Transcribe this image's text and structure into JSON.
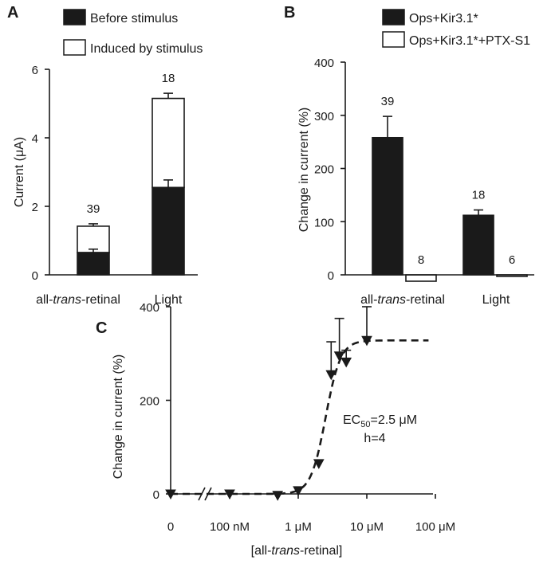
{
  "chart_data": [
    {
      "panel": "A",
      "type": "bar",
      "ylabel": "Current (μA)",
      "ylim": [
        0,
        6
      ],
      "yticks": [
        0,
        2,
        4,
        6
      ],
      "categories": [
        {
          "pre": "all-",
          "em": "trans",
          "post": "-retinal"
        },
        {
          "pre": "Light",
          "em": "",
          "post": ""
        }
      ],
      "series": [
        {
          "name": "Before stimulus",
          "values": [
            0.65,
            2.55
          ],
          "errors": [
            0.1,
            0.22
          ],
          "fill": "#1a1a1a"
        },
        {
          "name": "Induced by stimulus",
          "values": [
            0.77,
            2.6
          ],
          "errors": [
            0.07,
            0.15
          ],
          "fill": "#ffffff"
        }
      ],
      "n_labels": [
        "39",
        "18"
      ],
      "legend": "top"
    },
    {
      "panel": "B",
      "type": "bar",
      "ylabel": "Change in current (%)",
      "ylim": [
        -20,
        400
      ],
      "yticks": [
        0,
        100,
        200,
        300,
        400
      ],
      "categories": [
        {
          "pre": "all-",
          "em": "trans",
          "post": "-retinal"
        },
        {
          "pre": "Light",
          "em": "",
          "post": ""
        }
      ],
      "series": [
        {
          "name": "Ops+Kir3.1*",
          "values": [
            258,
            112
          ],
          "errors": [
            40,
            10
          ],
          "fill": "#1a1a1a"
        },
        {
          "name": "Ops+Kir3.1*+PTX-S1",
          "values": [
            -12,
            -3
          ],
          "errors": [
            0,
            0
          ],
          "fill": "#ffffff"
        }
      ],
      "n_labels": [
        [
          "39",
          "8"
        ],
        [
          "18",
          "6"
        ]
      ],
      "legend": "top"
    },
    {
      "panel": "C",
      "type": "scatter",
      "ylabel": "Change in current (%)",
      "ylim": [
        0,
        400
      ],
      "yticks": [
        0,
        200,
        400
      ],
      "xlabel": {
        "pre": "[all-",
        "em": "trans",
        "post": "-retinal]"
      },
      "xticks": [
        {
          "label": "0",
          "logx": null
        },
        {
          "label": "100 nM",
          "logx": -7
        },
        {
          "label": "1 μM",
          "logx": -6
        },
        {
          "label": "10 μM",
          "logx": -5
        },
        {
          "label": "100 μM",
          "logx": -4
        }
      ],
      "axis_break": true,
      "points": [
        {
          "x": "0",
          "logx": null,
          "y": 0,
          "err": 0
        },
        {
          "x": "100 nM",
          "logx": -7,
          "y": 0,
          "err": 0
        },
        {
          "x": "500 nM",
          "logx": -6.3,
          "y": -3,
          "err": 0
        },
        {
          "x": "1 μM",
          "logx": -6,
          "y": 7,
          "err": 0
        },
        {
          "x": "2 μM",
          "logx": -5.7,
          "y": 65,
          "err": 0
        },
        {
          "x": "3 μM",
          "logx": -5.52,
          "y": 255,
          "err": 70
        },
        {
          "x": "4 μM",
          "logx": -5.4,
          "y": 295,
          "err": 80
        },
        {
          "x": "5 μM",
          "logx": -5.3,
          "y": 282,
          "err": 25
        },
        {
          "x": "10 μM",
          "logx": -5,
          "y": 328,
          "err": 72
        }
      ],
      "fit": {
        "style": "dashed",
        "ec50_log": -5.6,
        "hill": 4,
        "top": 328,
        "bottom": 0
      },
      "annotation": {
        "ec_base": "EC",
        "ec_sub": "50",
        "ec_value": "=2.5 μM",
        "hill": "h=4"
      }
    }
  ]
}
